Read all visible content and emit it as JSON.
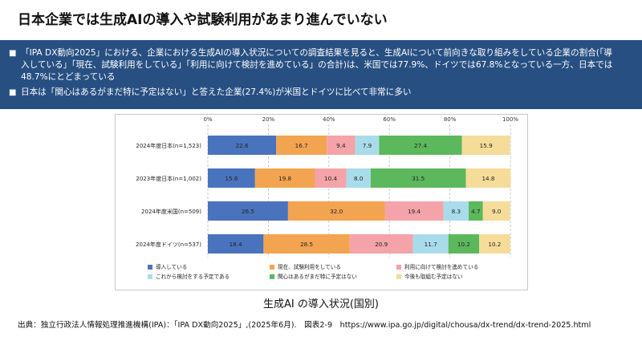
{
  "page": {
    "title": "日本企業では生成AIの導入や試験利用があまり進んでいない",
    "bullets": [
      "「IPA DX動向2025」における、企業における生成AIの導入状況についての調査結果を見ると、生成AIについて前向きな取り組みをしている企業の割合(「導入している」「現在、試験利用をしている」「利用に向けて検討を進めている」の合計)は、米国では77.9%、ドイツでは67.8%となっている一方、日本では48.7%にとどまっている",
      "日本は「関心はあるがまだ特に予定はない」と答えた企業(27.4%)が米国とドイツに比べて非常に多い"
    ],
    "caption": "生成AI の導入状況(国別)",
    "source": "出典：独立行政法人情報処理推進機構(IPA)：「IPA DX動向2025」,(2025年6月).　図表2-9　https://www.ipa.go.jp/digital/chousa/dx-trend/dx-trend-2025.html"
  },
  "colors": {
    "banner": "#274f82",
    "series": [
      "#4a73bd",
      "#f2a451",
      "#f4a3a8",
      "#a9dcea",
      "#5cb85c",
      "#f6dc99"
    ]
  },
  "chart_data": {
    "type": "bar",
    "orientation": "horizontal",
    "stacked": true,
    "categories": [
      "2024年度日本(n=1,523)",
      "2023年度日本(n=1,002)",
      "2024年度米国(n=509)",
      "2024年度ドイツ(n=537)"
    ],
    "x_ticks": [
      "0%",
      "20%",
      "40%",
      "60%",
      "80%",
      "100%"
    ],
    "xlim": [
      0,
      100
    ],
    "grid": true,
    "legend_position": "bottom",
    "series": [
      {
        "name": "導入している",
        "values": [
          22.6,
          15.6,
          26.5,
          18.4
        ]
      },
      {
        "name": "現在、試験利用をしている",
        "values": [
          16.7,
          19.8,
          32.0,
          28.5
        ]
      },
      {
        "name": "利用に向けて検討を進めている",
        "values": [
          9.4,
          10.4,
          19.4,
          20.9
        ]
      },
      {
        "name": "これから検討をする予定である",
        "values": [
          7.9,
          8.0,
          8.3,
          11.7
        ]
      },
      {
        "name": "関心はあるがまだ特に予定はない",
        "values": [
          27.4,
          31.5,
          4.7,
          10.2
        ]
      },
      {
        "name": "今後も取組む予定はない",
        "values": [
          15.9,
          14.8,
          9.0,
          10.2
        ]
      }
    ],
    "labels": [
      [
        "22.6",
        "16.7",
        "9.4",
        "7.9",
        "27.4",
        "15.9"
      ],
      [
        "15.6",
        "19.8",
        "10.4",
        "8.0",
        "31.5",
        "14.8"
      ],
      [
        "26.5",
        "32.0",
        "19.4",
        "8.3",
        "4.7",
        "9.0"
      ],
      [
        "18.4",
        "28.5",
        "20.9",
        "11.7",
        "10.2",
        "10.2"
      ]
    ]
  }
}
